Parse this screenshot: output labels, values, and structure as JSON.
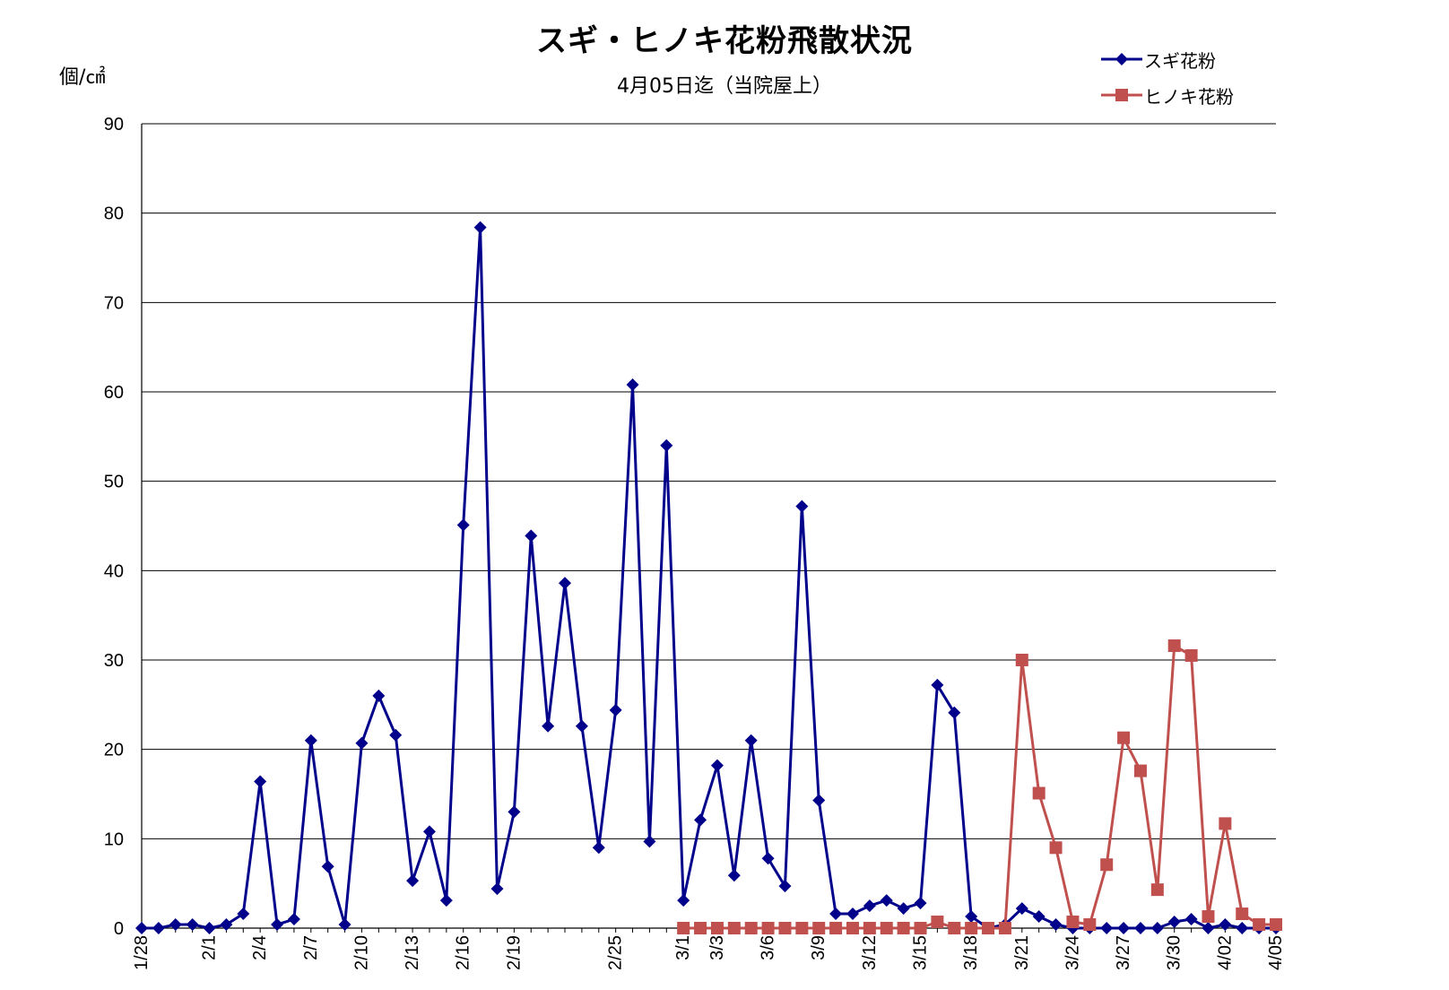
{
  "chart_data": {
    "type": "line",
    "title": "スギ・ヒノキ花粉飛散状況",
    "subtitle": "4月05日迄（当院屋上）",
    "ylabel": "個/㎠",
    "ylim": [
      0,
      90
    ],
    "yticks": [
      0,
      10,
      20,
      30,
      40,
      50,
      60,
      70,
      80,
      90
    ],
    "grid": true,
    "legend_position": "top-right",
    "x_days": [
      "1/28",
      "1/29",
      "1/30",
      "1/31",
      "2/1",
      "2/2",
      "2/3",
      "2/4",
      "2/5",
      "2/6",
      "2/7",
      "2/8",
      "2/9",
      "2/10",
      "2/11",
      "2/12",
      "2/13",
      "2/14",
      "2/15",
      "2/16",
      "2/17",
      "2/18",
      "2/19",
      "2/20",
      "2/21",
      "2/22",
      "2/23",
      "2/24",
      "2/25",
      "2/26",
      "2/27",
      "2/28",
      "3/1",
      "3/2",
      "3/3",
      "3/4",
      "3/5",
      "3/6",
      "3/7",
      "3/8",
      "3/9",
      "3/10",
      "3/11",
      "3/12",
      "3/13",
      "3/14",
      "3/15",
      "3/16",
      "3/17",
      "3/18",
      "3/19",
      "3/20",
      "3/21",
      "3/22",
      "3/23",
      "3/24",
      "3/25",
      "3/26",
      "3/27",
      "3/28",
      "3/29",
      "3/30",
      "3/31",
      "4/01",
      "4/02",
      "4/03",
      "4/04",
      "4/05"
    ],
    "x_tick_labels": [
      {
        "day": 0,
        "label": "1/28"
      },
      {
        "day": 4,
        "label": "2/1"
      },
      {
        "day": 7,
        "label": "2/4"
      },
      {
        "day": 10,
        "label": "2/7"
      },
      {
        "day": 13,
        "label": "2/10"
      },
      {
        "day": 16,
        "label": "2/13"
      },
      {
        "day": 19,
        "label": "2/16"
      },
      {
        "day": 22,
        "label": "2/19"
      },
      {
        "day": 28,
        "label": "2/25"
      },
      {
        "day": 32,
        "label": "3/1"
      },
      {
        "day": 34,
        "label": "3/3"
      },
      {
        "day": 37,
        "label": "3/6"
      },
      {
        "day": 40,
        "label": "3/9"
      },
      {
        "day": 43,
        "label": "3/12"
      },
      {
        "day": 46,
        "label": "3/15"
      },
      {
        "day": 49,
        "label": "3/18"
      },
      {
        "day": 52,
        "label": "3/21"
      },
      {
        "day": 55,
        "label": "3/24"
      },
      {
        "day": 58,
        "label": "3/27"
      },
      {
        "day": 61,
        "label": "3/30"
      },
      {
        "day": 64,
        "label": "4/02"
      },
      {
        "day": 67,
        "label": "4/05"
      }
    ],
    "series": [
      {
        "name": "スギ花粉",
        "color": "#00008b",
        "marker": "diamond",
        "start_day": 0,
        "values": [
          0,
          0,
          0.4,
          0.4,
          0,
          0.4,
          1.6,
          16.4,
          0.4,
          1,
          21,
          6.9,
          0.4,
          20.7,
          26,
          21.6,
          5.3,
          10.8,
          3.1,
          45.1,
          78.4,
          4.4,
          13,
          43.9,
          22.6,
          38.6,
          22.6,
          9,
          24.4,
          60.8,
          9.7,
          54,
          3.1,
          12.1,
          18.2,
          5.9,
          21,
          7.8,
          4.7,
          47.2,
          14.3,
          1.6,
          1.6,
          2.5,
          3.1,
          2.2,
          2.8,
          27.2,
          24.1,
          1.3,
          0,
          0.4,
          2.2,
          1.3,
          0.4,
          0,
          0,
          0,
          0,
          0,
          0,
          0.7,
          1,
          0,
          0.4,
          0,
          0,
          0
        ]
      },
      {
        "name": "ヒノキ花粉",
        "color": "#c0504d",
        "marker": "square",
        "start_day": 32,
        "values": [
          0,
          0,
          0,
          0,
          0,
          0,
          0,
          0,
          0,
          0,
          0,
          0,
          0,
          0,
          0,
          0.7,
          0,
          0,
          0,
          0,
          30,
          15.1,
          9,
          0.7,
          0.4,
          7.1,
          21.3,
          17.6,
          4.3,
          31.6,
          30.5,
          1.3,
          11.7,
          1.6,
          0.4,
          0.4
        ]
      }
    ]
  }
}
